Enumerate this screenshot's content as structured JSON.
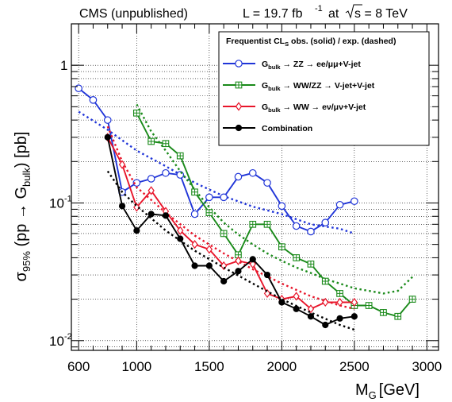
{
  "chart_data": {
    "type": "line",
    "header_left": "CMS (unpublished)",
    "lumi_prefix": "L = 19.7 fb",
    "lumi_exp": "-1",
    "lumi_suffix": "at",
    "sqrt_s": "s = 8 TeV",
    "xlabel": "M",
    "xlabel_sub": "G",
    "xlabel_unit": "[GeV]",
    "ylabel_sigma": "σ",
    "ylabel_sub": "95%",
    "ylabel_mid": "(pp → G",
    "ylabel_sub2": "bulk",
    "ylabel_end": ") [pb]",
    "xlim": [
      550,
      3080
    ],
    "ylim": [
      0.0085,
      2.0
    ],
    "yscale": "log",
    "grid": true,
    "x_ticks": [
      600,
      1000,
      1500,
      2000,
      2500,
      3000
    ],
    "x_tick_labels": [
      "600",
      "1000",
      "1500",
      "2000",
      "2500",
      "3000"
    ],
    "y_major_labels": [
      {
        "value": 1,
        "label": "1"
      },
      {
        "value": 0.1,
        "label": "10",
        "exp": "-1"
      },
      {
        "value": 0.01,
        "label": "10",
        "exp": "-2"
      }
    ],
    "legend_placement": "top-right",
    "legend_title": "Frequentist CL",
    "legend_title_sub": "S",
    "legend_title_rest": " obs. (solid) / exp. (dashed)",
    "series": [
      {
        "name_G": "G",
        "name_sub": "bulk",
        "name_rest": " → ZZ → ee/μμ+V-jet",
        "color": "#2035d8",
        "marker": "open-circle",
        "observed": {
          "x": [
            600,
            700,
            800,
            900,
            1000,
            1100,
            1200,
            1300,
            1400,
            1500,
            1600,
            1700,
            1800,
            1900,
            2000,
            2100,
            2200,
            2300,
            2400,
            2500
          ],
          "y": [
            0.68,
            0.56,
            0.4,
            0.12,
            0.14,
            0.15,
            0.165,
            0.16,
            0.083,
            0.11,
            0.11,
            0.155,
            0.165,
            0.14,
            0.095,
            0.068,
            0.062,
            0.072,
            0.097,
            0.103
          ]
        },
        "expected": {
          "x": [
            600,
            800,
            1000,
            1200,
            1400,
            1600,
            1800,
            2000,
            2200,
            2400,
            2500
          ],
          "y": [
            0.46,
            0.34,
            0.24,
            0.185,
            0.14,
            0.112,
            0.094,
            0.083,
            0.07,
            0.065,
            0.06
          ]
        }
      },
      {
        "name_G": "G",
        "name_sub": "bulk",
        "name_rest": " → WW/ZZ → V-jet+V-jet",
        "color": "#1a8a1a",
        "marker": "open-square-plus",
        "observed": {
          "x": [
            1000,
            1100,
            1200,
            1300,
            1400,
            1500,
            1600,
            1700,
            1800,
            1900,
            2000,
            2100,
            2200,
            2300,
            2400,
            2500,
            2600,
            2700,
            2800,
            2900
          ],
          "y": [
            0.45,
            0.28,
            0.27,
            0.22,
            0.12,
            0.085,
            0.06,
            0.042,
            0.07,
            0.07,
            0.048,
            0.04,
            0.036,
            0.027,
            0.022,
            0.018,
            0.018,
            0.016,
            0.015,
            0.02
          ]
        },
        "expected": {
          "x": [
            1000,
            1100,
            1200,
            1300,
            1400,
            1500,
            1600,
            1700,
            1800,
            1900,
            2000,
            2100,
            2200,
            2300,
            2400,
            2500,
            2600,
            2700,
            2800,
            2900
          ],
          "y": [
            0.52,
            0.33,
            0.24,
            0.17,
            0.125,
            0.093,
            0.072,
            0.059,
            0.05,
            0.043,
            0.038,
            0.034,
            0.031,
            0.028,
            0.026,
            0.024,
            0.023,
            0.022,
            0.023,
            0.029
          ]
        }
      },
      {
        "name_G": "G",
        "name_sub": "bulk",
        "name_rest": " → WW → eν/μν+V-jet",
        "color": "#e8152a",
        "marker": "open-diamond",
        "observed": {
          "x": [
            800,
            900,
            1000,
            1100,
            1200,
            1300,
            1400,
            1500,
            1600,
            1700,
            1800,
            1900,
            2000,
            2100,
            2200,
            2300,
            2400,
            2500
          ],
          "y": [
            0.3,
            0.19,
            0.093,
            0.123,
            0.087,
            0.063,
            0.05,
            0.046,
            0.035,
            0.038,
            0.036,
            0.022,
            0.02,
            0.021,
            0.017,
            0.019,
            0.019,
            0.019
          ]
        },
        "expected": {
          "x": [
            800,
            900,
            1000,
            1200,
            1400,
            1600,
            1800,
            2000,
            2200,
            2400,
            2500
          ],
          "y": [
            0.36,
            0.2,
            0.13,
            0.085,
            0.058,
            0.043,
            0.033,
            0.026,
            0.021,
            0.018,
            0.017
          ]
        }
      },
      {
        "name_G": "",
        "name_sub": "",
        "name_rest": "Combination",
        "color": "#000000",
        "marker": "filled-circle",
        "observed": {
          "x": [
            800,
            900,
            1000,
            1100,
            1200,
            1300,
            1400,
            1500,
            1600,
            1700,
            1800,
            1900,
            2000,
            2100,
            2200,
            2300,
            2400,
            2500
          ],
          "y": [
            0.3,
            0.095,
            0.063,
            0.083,
            0.081,
            0.055,
            0.035,
            0.035,
            0.027,
            0.032,
            0.039,
            0.03,
            0.019,
            0.017,
            0.015,
            0.013,
            0.0145,
            0.015
          ]
        },
        "expected": {
          "x": [
            800,
            900,
            1000,
            1200,
            1400,
            1600,
            1800,
            2000,
            2200,
            2400,
            2500
          ],
          "y": [
            0.17,
            0.12,
            0.095,
            0.063,
            0.045,
            0.034,
            0.026,
            0.02,
            0.016,
            0.013,
            0.012
          ]
        }
      }
    ]
  }
}
